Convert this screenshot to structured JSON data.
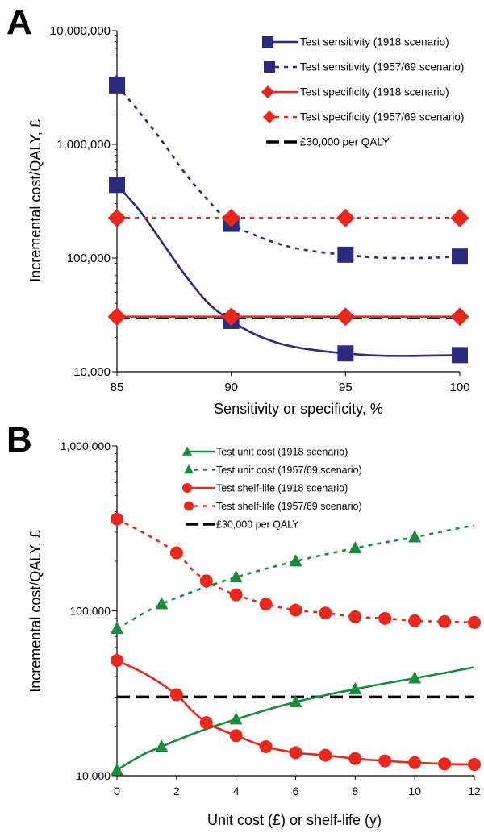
{
  "panels": [
    {
      "letter": "A",
      "chart_data": {
        "type": "line",
        "yscale": "log",
        "ylim": [
          10000,
          10000000
        ],
        "xlim": [
          85,
          100
        ],
        "xticks": [
          85,
          90,
          95,
          100
        ],
        "xtick_labels": [
          "85",
          "90",
          "95",
          "100"
        ],
        "yticks": [
          10000,
          100000,
          1000000,
          10000000
        ],
        "ytick_labels": [
          "10,000",
          "100,000",
          "1,000,000",
          "10,000,000"
        ],
        "xlabel": "Sensitivity or specificity, %",
        "ylabel": "Incremental cost/QALY, £",
        "legend_position": "top-right",
        "series": [
          {
            "name": "Test sensitivity (1918 scenario)",
            "color": "#2b2a7e",
            "dash": "solid",
            "marker": "square",
            "x": [
              85,
              90,
              95,
              100
            ],
            "y": [
              440000,
              28000,
              14500,
              14000
            ],
            "curve": [
              [
                85,
                440000
              ],
              [
                86,
                260000
              ],
              [
                87,
                135000
              ],
              [
                88,
                70000
              ],
              [
                89,
                40000
              ],
              [
                90,
                28000
              ],
              [
                91,
                21500
              ],
              [
                92,
                18000
              ],
              [
                93,
                16200
              ],
              [
                94,
                15200
              ],
              [
                95,
                14500
              ],
              [
                96,
                14000
              ],
              [
                97,
                13800
              ],
              [
                98,
                13800
              ],
              [
                99,
                13900
              ],
              [
                100,
                14000
              ]
            ]
          },
          {
            "name": "Test sensitivity (1957/69 scenario)",
            "color": "#2b2a7e",
            "dash": "dotted",
            "marker": "square",
            "x": [
              85,
              90,
              95,
              100
            ],
            "y": [
              3300000,
              200000,
              107000,
              103000
            ],
            "curve": [
              [
                85,
                3300000
              ],
              [
                86,
                1900000
              ],
              [
                87,
                1050000
              ],
              [
                88,
                550000
              ],
              [
                89,
                320000
              ],
              [
                90,
                200000
              ],
              [
                91,
                160000
              ],
              [
                92,
                135000
              ],
              [
                93,
                120000
              ],
              [
                94,
                112000
              ],
              [
                95,
                107000
              ],
              [
                96,
                102000
              ],
              [
                97,
                100000
              ],
              [
                98,
                100000
              ],
              [
                99,
                101000
              ],
              [
                100,
                103000
              ]
            ]
          },
          {
            "name": "Test specificity (1918 scenario)",
            "color": "#e8281e",
            "dash": "solid",
            "marker": "diamond",
            "x": [
              85,
              90,
              95,
              100
            ],
            "y": [
              30500,
              30500,
              30500,
              30500
            ],
            "curve": [
              [
                85,
                30500
              ],
              [
                100,
                30500
              ]
            ]
          },
          {
            "name": "Test specificity (1957/69 scenario)",
            "color": "#e8281e",
            "dash": "dotted",
            "marker": "diamond",
            "x": [
              85,
              90,
              95,
              100
            ],
            "y": [
              225000,
              225000,
              225000,
              225000
            ],
            "curve": [
              [
                85,
                225000
              ],
              [
                100,
                225000
              ]
            ]
          },
          {
            "name": "£30,000 per QALY",
            "color": "#000000",
            "dash": "dashed",
            "marker": "none",
            "x": [],
            "y": [],
            "curve": [
              [
                85,
                30000
              ],
              [
                100,
                30000
              ]
            ]
          }
        ]
      }
    },
    {
      "letter": "B",
      "chart_data": {
        "type": "line",
        "yscale": "log",
        "ylim": [
          10000,
          1000000
        ],
        "xlim": [
          0,
          12
        ],
        "xticks": [
          0,
          2,
          4,
          6,
          8,
          10,
          12
        ],
        "xtick_labels": [
          "0",
          "2",
          "4",
          "6",
          "8",
          "10",
          "12"
        ],
        "yticks": [
          10000,
          100000,
          1000000
        ],
        "ytick_labels": [
          "10,000",
          "100,000",
          "1,000,000"
        ],
        "xlabel": "Unit cost (£) or shelf-life (y)",
        "ylabel": "Incremental cost/QALY, £",
        "legend_position": "top-right",
        "series": [
          {
            "name": "Test unit cost (1918 scenario)",
            "color": "#1a8a3e",
            "dash": "solid",
            "marker": "triangle",
            "x": [
              0,
              1.5,
              4,
              6,
              8,
              10
            ],
            "y": [
              10800,
              15000,
              22000,
              28000,
              33500,
              39000
            ],
            "curve": [
              [
                0,
                10800
              ],
              [
                0.5,
                12300
              ],
              [
                1,
                13800
              ],
              [
                1.5,
                15000
              ],
              [
                2,
                16400
              ],
              [
                3,
                19200
              ],
              [
                4,
                22000
              ],
              [
                5,
                25000
              ],
              [
                6,
                28000
              ],
              [
                7,
                30800
              ],
              [
                8,
                33500
              ],
              [
                9,
                36300
              ],
              [
                10,
                39000
              ],
              [
                11,
                42000
              ],
              [
                12,
                45500
              ]
            ]
          },
          {
            "name": "Test unit cost (1957/69 scenario)",
            "color": "#1a8a3e",
            "dash": "dotted",
            "marker": "triangle",
            "x": [
              0,
              1.5,
              4,
              6,
              8,
              10
            ],
            "y": [
              78000,
              110000,
              160000,
              200000,
              240000,
              280000
            ],
            "curve": [
              [
                0,
                78000
              ],
              [
                0.5,
                88000
              ],
              [
                1,
                99000
              ],
              [
                1.5,
                110000
              ],
              [
                2,
                120000
              ],
              [
                3,
                140000
              ],
              [
                4,
                160000
              ],
              [
                5,
                180000
              ],
              [
                6,
                200000
              ],
              [
                7,
                220000
              ],
              [
                8,
                240000
              ],
              [
                9,
                260000
              ],
              [
                10,
                280000
              ],
              [
                11,
                305000
              ],
              [
                12,
                330000
              ]
            ]
          },
          {
            "name": "Test shelf-life (1918 scenario)",
            "color": "#e8281e",
            "dash": "solid",
            "marker": "circle",
            "x": [
              0,
              2,
              3,
              4,
              5,
              6,
              7,
              8,
              9,
              10,
              11,
              12
            ],
            "y": [
              50000,
              31000,
              21000,
              17500,
              15000,
              13800,
              13300,
              12700,
              12300,
              12000,
              11800,
              11700
            ],
            "curve": [
              [
                0,
                50000
              ],
              [
                1,
                41000
              ],
              [
                2,
                31000
              ],
              [
                2.5,
                25000
              ],
              [
                3,
                21000
              ],
              [
                3.5,
                19000
              ],
              [
                4,
                17500
              ],
              [
                5,
                15000
              ],
              [
                6,
                13800
              ],
              [
                7,
                13300
              ],
              [
                8,
                12700
              ],
              [
                9,
                12300
              ],
              [
                10,
                12000
              ],
              [
                11,
                11800
              ],
              [
                12,
                11700
              ]
            ]
          },
          {
            "name": "Test shelf-life (1957/69 scenario)",
            "color": "#e8281e",
            "dash": "dotted",
            "marker": "circle",
            "x": [
              0,
              2,
              3,
              4,
              5,
              6,
              7,
              8,
              9,
              10,
              11,
              12
            ],
            "y": [
              360000,
              225000,
              152000,
              125000,
              110000,
              101000,
              97000,
              92000,
              90000,
              87000,
              86000,
              85000
            ],
            "curve": [
              [
                0,
                360000
              ],
              [
                1,
                290000
              ],
              [
                2,
                225000
              ],
              [
                2.5,
                180000
              ],
              [
                3,
                152000
              ],
              [
                3.5,
                136000
              ],
              [
                4,
                125000
              ],
              [
                5,
                110000
              ],
              [
                6,
                101000
              ],
              [
                7,
                97000
              ],
              [
                8,
                92000
              ],
              [
                9,
                90000
              ],
              [
                10,
                87000
              ],
              [
                11,
                86000
              ],
              [
                12,
                85000
              ]
            ]
          },
          {
            "name": "£30,000 per QALY",
            "color": "#000000",
            "dash": "dashed",
            "marker": "none",
            "x": [],
            "y": [],
            "curve": [
              [
                0,
                30000
              ],
              [
                12,
                30000
              ]
            ]
          }
        ]
      }
    }
  ]
}
